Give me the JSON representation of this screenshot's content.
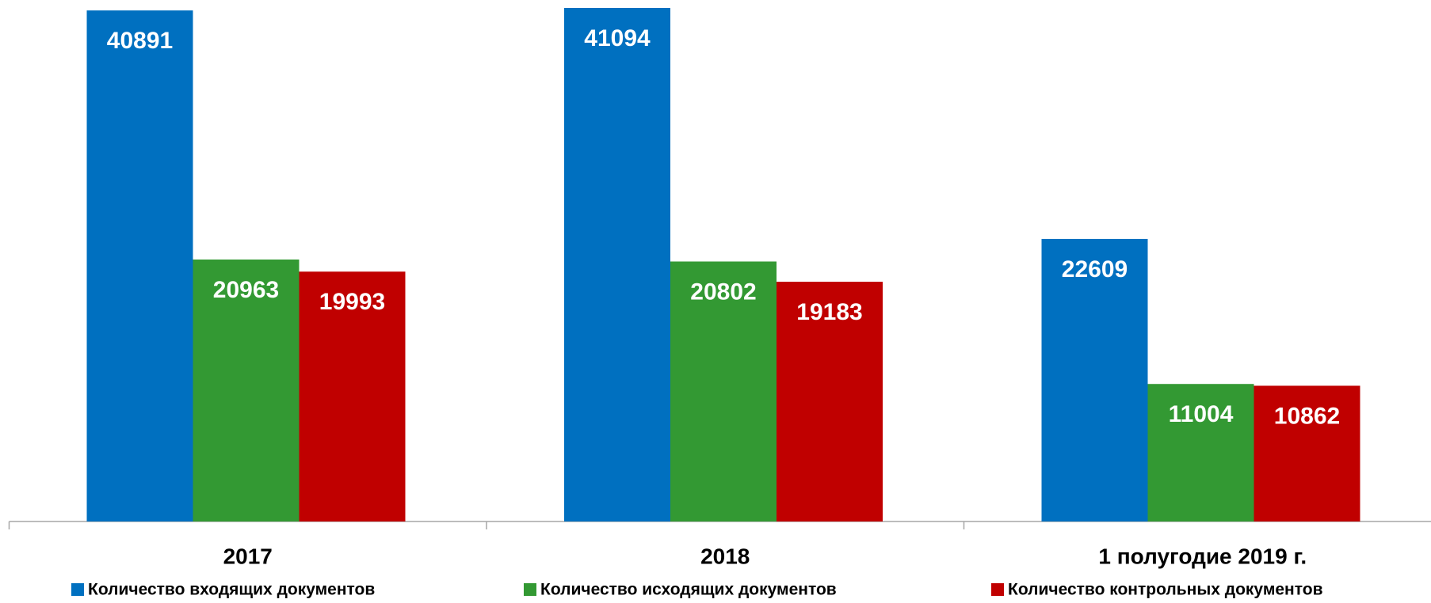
{
  "chart_data": {
    "type": "bar",
    "categories": [
      "2017",
      "2018",
      "1 полугодие 2019 г."
    ],
    "series": [
      {
        "name": "Количество входящих документов",
        "color": "#0070c0",
        "values": [
          40891,
          41094,
          22609
        ]
      },
      {
        "name": "Количество исходящих документов",
        "color": "#339933",
        "values": [
          20963,
          20802,
          11004
        ]
      },
      {
        "name": "Количество контрольных документов",
        "color": "#c00000",
        "values": [
          19993,
          19183,
          10862
        ]
      }
    ],
    "legend": "bottom"
  }
}
